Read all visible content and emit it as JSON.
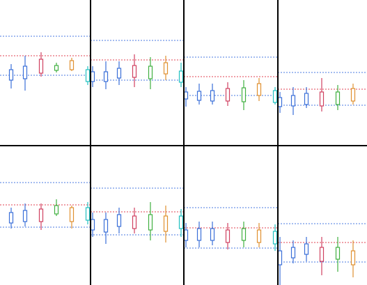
{
  "chart_data": [
    {
      "type": "box",
      "xlim": [
        0,
        130
      ],
      "ylim": [
        0,
        209
      ],
      "lines": [
        {
          "value": 157,
          "color": "#4a7ae0"
        },
        {
          "value": 129,
          "color": "#e04050"
        },
        {
          "value": 101,
          "color": "#4a7ae0"
        }
      ],
      "boxes": [
        {
          "x": 16,
          "color": "#3a6fd8",
          "stats": [
            82,
            94,
            109,
            117
          ]
        },
        {
          "x": 36,
          "color": "#3a6fd8",
          "stats": [
            79,
            96,
            114,
            129
          ]
        },
        {
          "x": 59,
          "color": "#d04060",
          "stats": [
            99,
            104,
            124,
            134
          ]
        },
        {
          "x": 81,
          "color": "#40b040",
          "stats": [
            105,
            108,
            115,
            119
          ]
        },
        {
          "x": 103,
          "color": "#e09030",
          "stats": [
            107,
            109,
            122,
            126
          ]
        },
        {
          "x": 126,
          "color": "#20c0c0",
          "stats": [
            87,
            92,
            109,
            114
          ]
        }
      ]
    },
    {
      "type": "box",
      "xlim": [
        0,
        134
      ],
      "ylim": [
        0,
        209
      ],
      "lines": [
        {
          "value": 151,
          "color": "#4a7ae0"
        },
        {
          "value": 123,
          "color": "#e04050"
        },
        {
          "value": 94,
          "color": "#4a7ae0"
        }
      ],
      "boxes": [
        {
          "x": 3,
          "color": "#3a6fd8",
          "stats": [
            84,
            92,
            106,
            114
          ]
        },
        {
          "x": 22,
          "color": "#3a6fd8",
          "stats": [
            81,
            92,
            106,
            121
          ]
        },
        {
          "x": 41,
          "color": "#3a6fd8",
          "stats": [
            87,
            97,
            111,
            121
          ]
        },
        {
          "x": 63,
          "color": "#d04060",
          "stats": [
            84,
            98,
            115,
            131
          ]
        },
        {
          "x": 86,
          "color": "#40b040",
          "stats": [
            81,
            96,
            114,
            127
          ]
        },
        {
          "x": 108,
          "color": "#e09030",
          "stats": [
            94,
            103,
            119,
            129
          ]
        },
        {
          "x": 130,
          "color": "#20c0c0",
          "stats": [
            84,
            91,
            107,
            119
          ]
        }
      ]
    },
    {
      "type": "box",
      "xlim": [
        0,
        135
      ],
      "ylim": [
        0,
        209
      ],
      "lines": [
        {
          "value": 127,
          "color": "#4a7ae0"
        },
        {
          "value": 99,
          "color": "#e04050"
        },
        {
          "value": 72,
          "color": "#4a7ae0"
        }
      ],
      "boxes": [
        {
          "x": 3,
          "color": "#3a6fd8",
          "stats": [
            56,
            67,
            77,
            84
          ]
        },
        {
          "x": 22,
          "color": "#3a6fd8",
          "stats": [
            59,
            65,
            78,
            89
          ]
        },
        {
          "x": 41,
          "color": "#3a6fd8",
          "stats": [
            59,
            64,
            79,
            89
          ]
        },
        {
          "x": 63,
          "color": "#d04060",
          "stats": [
            57,
            64,
            82,
            91
          ]
        },
        {
          "x": 86,
          "color": "#40b040",
          "stats": [
            51,
            63,
            83,
            94
          ]
        },
        {
          "x": 108,
          "color": "#e09030",
          "stats": [
            64,
            72,
            89,
            97
          ]
        },
        {
          "x": 131,
          "color": "#20c0c0",
          "stats": [
            59,
            62,
            79,
            84
          ]
        }
      ]
    },
    {
      "type": "box",
      "xlim": [
        0,
        128
      ],
      "ylim": [
        0,
        209
      ],
      "lines": [
        {
          "value": 105,
          "color": "#4a7ae0"
        },
        {
          "value": 81,
          "color": "#e04050"
        },
        {
          "value": 58,
          "color": "#4a7ae0"
        }
      ],
      "boxes": [
        {
          "x": 3,
          "color": "#3a6fd8",
          "stats": [
            47,
            56,
            69,
            77
          ]
        },
        {
          "x": 22,
          "color": "#3a6fd8",
          "stats": [
            44,
            57,
            72,
            84
          ]
        },
        {
          "x": 41,
          "color": "#3a6fd8",
          "stats": [
            54,
            59,
            75,
            84
          ]
        },
        {
          "x": 63,
          "color": "#d04060",
          "stats": [
            49,
            57,
            77,
            97
          ]
        },
        {
          "x": 86,
          "color": "#40b040",
          "stats": [
            51,
            59,
            77,
            87
          ]
        },
        {
          "x": 108,
          "color": "#e09030",
          "stats": [
            59,
            64,
            82,
            89
          ]
        }
      ]
    },
    {
      "type": "box",
      "xlim": [
        0,
        130
      ],
      "ylim": [
        0,
        200
      ],
      "lines": [
        {
          "value": 147,
          "color": "#4a7ae0"
        },
        {
          "value": 115,
          "color": "#e04050"
        },
        {
          "value": 83,
          "color": "#4a7ae0"
        }
      ],
      "boxes": [
        {
          "x": 16,
          "color": "#3a6fd8",
          "stats": [
            81,
            89,
            104,
            111
          ]
        },
        {
          "x": 36,
          "color": "#3a6fd8",
          "stats": [
            84,
            91,
            107,
            117
          ]
        },
        {
          "x": 59,
          "color": "#d04060",
          "stats": [
            79,
            91,
            109,
            117
          ]
        },
        {
          "x": 81,
          "color": "#40b040",
          "stats": [
            99,
            102,
            114,
            123
          ]
        },
        {
          "x": 103,
          "color": "#e09030",
          "stats": [
            81,
            91,
            111,
            114
          ]
        },
        {
          "x": 126,
          "color": "#20c0c0",
          "stats": [
            87,
            93,
            111,
            119
          ]
        }
      ]
    },
    {
      "type": "box",
      "xlim": [
        0,
        134
      ],
      "ylim": [
        0,
        200
      ],
      "lines": [
        {
          "value": 139,
          "color": "#4a7ae0"
        },
        {
          "value": 105,
          "color": "#e04050"
        },
        {
          "value": 72,
          "color": "#4a7ae0"
        }
      ],
      "boxes": [
        {
          "x": 3,
          "color": "#3a6fd8",
          "stats": [
            69,
            79,
            94,
            104
          ]
        },
        {
          "x": 22,
          "color": "#3a6fd8",
          "stats": [
            59,
            76,
            94,
            104
          ]
        },
        {
          "x": 41,
          "color": "#3a6fd8",
          "stats": [
            74,
            84,
            101,
            111
          ]
        },
        {
          "x": 63,
          "color": "#d04060",
          "stats": [
            74,
            81,
            99,
            111
          ]
        },
        {
          "x": 86,
          "color": "#40b040",
          "stats": [
            64,
            79,
            101,
            119
          ]
        },
        {
          "x": 108,
          "color": "#e09030",
          "stats": [
            61,
            77,
            99,
            114
          ]
        },
        {
          "x": 130,
          "color": "#20c0c0",
          "stats": [
            69,
            81,
            99,
            109
          ]
        }
      ]
    },
    {
      "type": "box",
      "xlim": [
        0,
        135
      ],
      "ylim": [
        0,
        200
      ],
      "lines": [
        {
          "value": 111,
          "color": "#4a7ae0"
        },
        {
          "value": 82,
          "color": "#e04050"
        },
        {
          "value": 53,
          "color": "#4a7ae0"
        }
      ],
      "boxes": [
        {
          "x": 3,
          "color": "#3a6fd8",
          "stats": [
            54,
            64,
            79,
            89
          ]
        },
        {
          "x": 22,
          "color": "#3a6fd8",
          "stats": [
            54,
            64,
            81,
            91
          ]
        },
        {
          "x": 41,
          "color": "#3a6fd8",
          "stats": [
            57,
            64,
            81,
            91
          ]
        },
        {
          "x": 63,
          "color": "#d04060",
          "stats": [
            51,
            61,
            79,
            89
          ]
        },
        {
          "x": 86,
          "color": "#40b040",
          "stats": [
            54,
            64,
            81,
            91
          ]
        },
        {
          "x": 108,
          "color": "#e09030",
          "stats": [
            54,
            61,
            79,
            89
          ]
        },
        {
          "x": 131,
          "color": "#20c0c0",
          "stats": [
            49,
            59,
            77,
            87
          ]
        }
      ]
    },
    {
      "type": "box",
      "xlim": [
        0,
        128
      ],
      "ylim": [
        0,
        200
      ],
      "lines": [
        {
          "value": 88,
          "color": "#4a7ae0"
        },
        {
          "value": 61,
          "color": "#e04050"
        },
        {
          "value": 33,
          "color": "#4a7ae0"
        }
      ],
      "boxes": [
        {
          "x": 3,
          "color": "#3a6fd8",
          "stats": [
            0,
            29,
            49,
            69
          ]
        },
        {
          "x": 22,
          "color": "#3a6fd8",
          "stats": [
            31,
            39,
            54,
            64
          ]
        },
        {
          "x": 41,
          "color": "#3a6fd8",
          "stats": [
            34,
            44,
            59,
            69
          ]
        },
        {
          "x": 63,
          "color": "#d04060",
          "stats": [
            14,
            34,
            54,
            69
          ]
        },
        {
          "x": 86,
          "color": "#40b040",
          "stats": [
            19,
            37,
            54,
            69
          ]
        },
        {
          "x": 108,
          "color": "#e09030",
          "stats": [
            11,
            29,
            49,
            64
          ]
        }
      ]
    }
  ]
}
